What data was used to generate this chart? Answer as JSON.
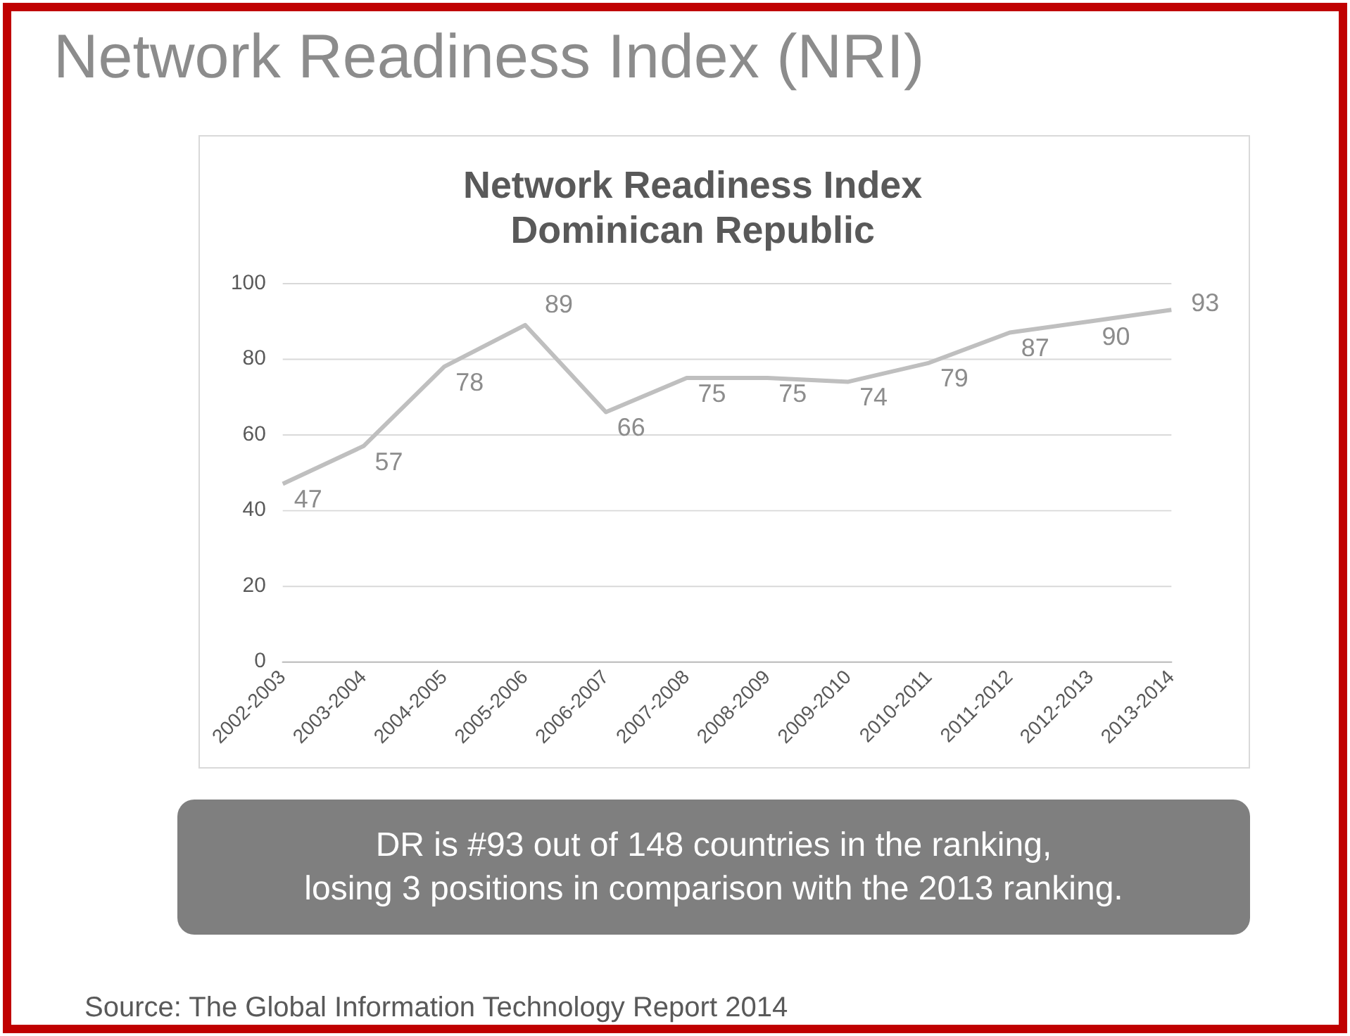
{
  "chart_data": {
    "type": "line",
    "title": "Network Readiness Index (NRI)",
    "subtitle": "Network Readiness Index\nDominican Republic",
    "categories": [
      "2002-2003",
      "2003-2004",
      "2004-2005",
      "2005-2006",
      "2006-2007",
      "2007-2008",
      "2008-2009",
      "2009-2010",
      "2010-2011",
      "2011-2012",
      "2012-2013",
      "2013-2014"
    ],
    "values": [
      47,
      57,
      78,
      89,
      66,
      75,
      75,
      74,
      79,
      87,
      90,
      93
    ],
    "color": "#bfbfbf",
    "ylim": [
      0,
      100
    ],
    "yticks": [
      0,
      20,
      40,
      60,
      80,
      100
    ],
    "grid": "y",
    "data_labels": true,
    "marker": "none",
    "legend": false,
    "annotations": [
      "DR is #93 out of 148 countries in the ranking,\nlosing 3 positions in comparison with the 2013 ranking.",
      "Source:  The Global Information Technology Report 2014"
    ]
  }
}
